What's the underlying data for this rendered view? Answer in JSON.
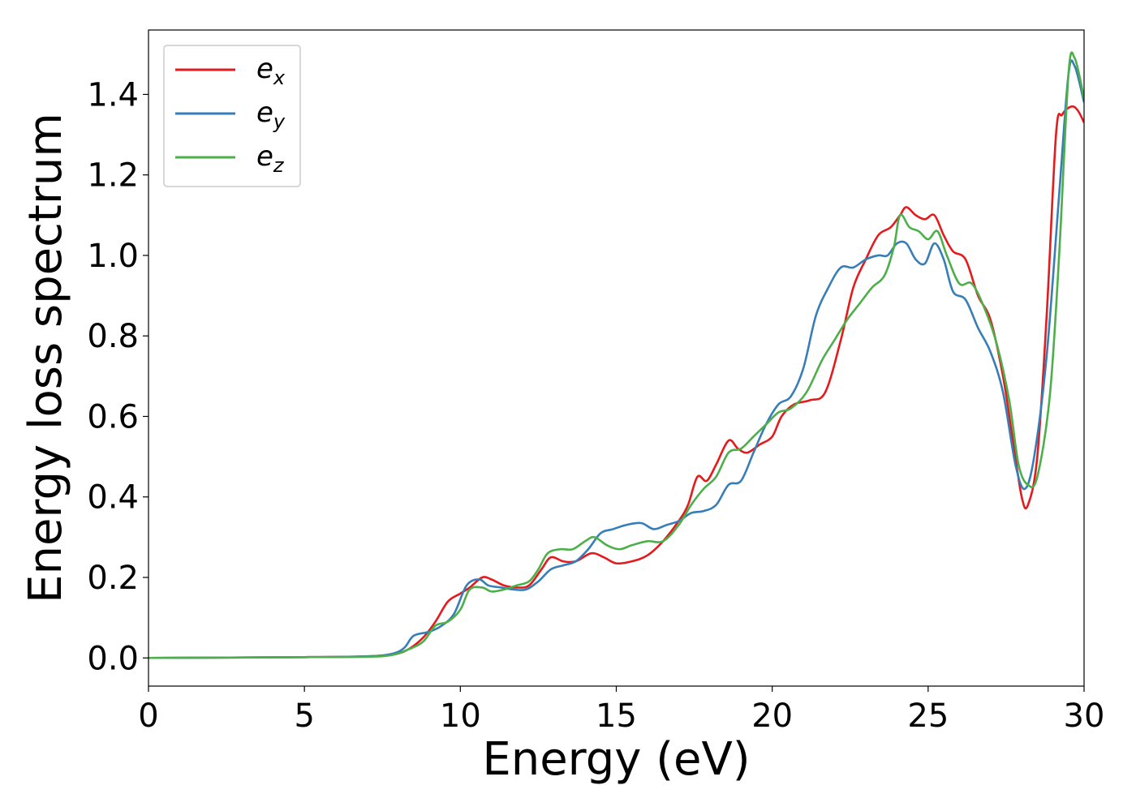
{
  "chart_data": {
    "type": "line",
    "xlabel": "Energy (eV)",
    "ylabel": "Energy loss spectrum",
    "xlim": [
      0,
      30
    ],
    "ylim": [
      -0.07,
      1.56
    ],
    "xticks": [
      0,
      5,
      10,
      15,
      20,
      25,
      30
    ],
    "yticks": [
      0.0,
      0.2,
      0.4,
      0.6,
      0.8,
      1.0,
      1.2,
      1.4
    ],
    "xtick_labels": [
      "0",
      "5",
      "10",
      "15",
      "20",
      "25",
      "30"
    ],
    "ytick_labels": [
      "0.0",
      "0.2",
      "0.4",
      "0.6",
      "0.8",
      "1.0",
      "1.2",
      "1.4"
    ],
    "grid": false,
    "legend_position": "top-left",
    "series": [
      {
        "name": "e",
        "subscript": "x",
        "color": "#e41a1c",
        "points": [
          [
            0,
            0
          ],
          [
            5,
            0.002
          ],
          [
            7,
            0.004
          ],
          [
            7.8,
            0.008
          ],
          [
            8.3,
            0.02
          ],
          [
            8.8,
            0.05
          ],
          [
            9.2,
            0.09
          ],
          [
            9.6,
            0.14
          ],
          [
            10,
            0.16
          ],
          [
            10.3,
            0.175
          ],
          [
            10.7,
            0.2
          ],
          [
            11,
            0.195
          ],
          [
            11.4,
            0.18
          ],
          [
            11.8,
            0.175
          ],
          [
            12.2,
            0.18
          ],
          [
            12.6,
            0.22
          ],
          [
            12.9,
            0.25
          ],
          [
            13.3,
            0.24
          ],
          [
            13.7,
            0.24
          ],
          [
            14.2,
            0.26
          ],
          [
            14.6,
            0.25
          ],
          [
            15,
            0.235
          ],
          [
            15.5,
            0.24
          ],
          [
            16,
            0.255
          ],
          [
            16.5,
            0.29
          ],
          [
            17,
            0.34
          ],
          [
            17.3,
            0.38
          ],
          [
            17.6,
            0.45
          ],
          [
            17.9,
            0.44
          ],
          [
            18.2,
            0.48
          ],
          [
            18.6,
            0.54
          ],
          [
            18.9,
            0.52
          ],
          [
            19.2,
            0.51
          ],
          [
            19.6,
            0.53
          ],
          [
            20,
            0.55
          ],
          [
            20.3,
            0.6
          ],
          [
            20.7,
            0.63
          ],
          [
            21.2,
            0.64
          ],
          [
            21.7,
            0.66
          ],
          [
            22.2,
            0.79
          ],
          [
            22.6,
            0.92
          ],
          [
            23,
            0.99
          ],
          [
            23.4,
            1.05
          ],
          [
            23.8,
            1.07
          ],
          [
            24.1,
            1.1
          ],
          [
            24.3,
            1.12
          ],
          [
            24.6,
            1.1
          ],
          [
            24.9,
            1.09
          ],
          [
            25.2,
            1.1
          ],
          [
            25.5,
            1.05
          ],
          [
            25.8,
            1.01
          ],
          [
            26.2,
            0.99
          ],
          [
            26.6,
            0.9
          ],
          [
            27,
            0.84
          ],
          [
            27.4,
            0.7
          ],
          [
            27.7,
            0.55
          ],
          [
            28,
            0.4
          ],
          [
            28.2,
            0.38
          ],
          [
            28.5,
            0.5
          ],
          [
            28.8,
            0.85
          ],
          [
            29.1,
            1.3
          ],
          [
            29.3,
            1.35
          ],
          [
            29.6,
            1.37
          ],
          [
            29.8,
            1.36
          ],
          [
            30,
            1.33
          ]
        ]
      },
      {
        "name": "e",
        "subscript": "y",
        "color": "#377eb8",
        "points": [
          [
            0,
            0
          ],
          [
            5,
            0.002
          ],
          [
            7,
            0.004
          ],
          [
            7.8,
            0.01
          ],
          [
            8.2,
            0.025
          ],
          [
            8.5,
            0.055
          ],
          [
            9,
            0.065
          ],
          [
            9.4,
            0.08
          ],
          [
            9.8,
            0.11
          ],
          [
            10.2,
            0.18
          ],
          [
            10.6,
            0.195
          ],
          [
            10.9,
            0.18
          ],
          [
            11.3,
            0.175
          ],
          [
            11.7,
            0.17
          ],
          [
            12.1,
            0.17
          ],
          [
            12.5,
            0.19
          ],
          [
            12.9,
            0.22
          ],
          [
            13.3,
            0.23
          ],
          [
            13.7,
            0.24
          ],
          [
            14.1,
            0.27
          ],
          [
            14.5,
            0.31
          ],
          [
            14.9,
            0.32
          ],
          [
            15.3,
            0.33
          ],
          [
            15.8,
            0.335
          ],
          [
            16.2,
            0.32
          ],
          [
            16.6,
            0.33
          ],
          [
            17,
            0.34
          ],
          [
            17.4,
            0.36
          ],
          [
            17.8,
            0.365
          ],
          [
            18.2,
            0.38
          ],
          [
            18.6,
            0.43
          ],
          [
            19,
            0.44
          ],
          [
            19.4,
            0.51
          ],
          [
            19.8,
            0.58
          ],
          [
            20.2,
            0.63
          ],
          [
            20.6,
            0.65
          ],
          [
            21,
            0.72
          ],
          [
            21.4,
            0.85
          ],
          [
            21.8,
            0.92
          ],
          [
            22.2,
            0.97
          ],
          [
            22.6,
            0.97
          ],
          [
            23,
            0.99
          ],
          [
            23.4,
            1.0
          ],
          [
            23.7,
            1.0
          ],
          [
            24,
            1.03
          ],
          [
            24.3,
            1.03
          ],
          [
            24.6,
            0.99
          ],
          [
            24.9,
            0.98
          ],
          [
            25.2,
            1.03
          ],
          [
            25.5,
            0.99
          ],
          [
            25.8,
            0.91
          ],
          [
            26.2,
            0.89
          ],
          [
            26.6,
            0.82
          ],
          [
            27,
            0.76
          ],
          [
            27.4,
            0.66
          ],
          [
            27.8,
            0.48
          ],
          [
            28.1,
            0.42
          ],
          [
            28.4,
            0.5
          ],
          [
            28.8,
            0.75
          ],
          [
            29.2,
            1.15
          ],
          [
            29.5,
            1.45
          ],
          [
            29.7,
            1.47
          ],
          [
            30,
            1.38
          ]
        ]
      },
      {
        "name": "e",
        "subscript": "z",
        "color": "#4daf4a",
        "points": [
          [
            0,
            0
          ],
          [
            5,
            0.002
          ],
          [
            7,
            0.003
          ],
          [
            7.8,
            0.007
          ],
          [
            8.3,
            0.02
          ],
          [
            8.8,
            0.04
          ],
          [
            9.2,
            0.08
          ],
          [
            9.6,
            0.09
          ],
          [
            10,
            0.12
          ],
          [
            10.3,
            0.17
          ],
          [
            10.7,
            0.175
          ],
          [
            11,
            0.165
          ],
          [
            11.4,
            0.17
          ],
          [
            11.8,
            0.18
          ],
          [
            12.2,
            0.19
          ],
          [
            12.5,
            0.22
          ],
          [
            12.8,
            0.26
          ],
          [
            13.2,
            0.27
          ],
          [
            13.6,
            0.27
          ],
          [
            14,
            0.29
          ],
          [
            14.3,
            0.3
          ],
          [
            14.7,
            0.28
          ],
          [
            15.1,
            0.27
          ],
          [
            15.5,
            0.28
          ],
          [
            16,
            0.29
          ],
          [
            16.5,
            0.29
          ],
          [
            17,
            0.33
          ],
          [
            17.4,
            0.38
          ],
          [
            17.8,
            0.42
          ],
          [
            18.2,
            0.45
          ],
          [
            18.6,
            0.51
          ],
          [
            19,
            0.52
          ],
          [
            19.4,
            0.55
          ],
          [
            19.8,
            0.58
          ],
          [
            20.2,
            0.61
          ],
          [
            20.6,
            0.62
          ],
          [
            21.1,
            0.66
          ],
          [
            21.6,
            0.74
          ],
          [
            22,
            0.79
          ],
          [
            22.4,
            0.84
          ],
          [
            22.8,
            0.88
          ],
          [
            23.2,
            0.92
          ],
          [
            23.6,
            0.95
          ],
          [
            23.9,
            1.02
          ],
          [
            24.1,
            1.1
          ],
          [
            24.4,
            1.07
          ],
          [
            24.7,
            1.06
          ],
          [
            25,
            1.04
          ],
          [
            25.3,
            1.06
          ],
          [
            25.6,
            1.0
          ],
          [
            26,
            0.93
          ],
          [
            26.4,
            0.93
          ],
          [
            26.8,
            0.87
          ],
          [
            27.2,
            0.78
          ],
          [
            27.6,
            0.64
          ],
          [
            27.9,
            0.48
          ],
          [
            28.2,
            0.43
          ],
          [
            28.5,
            0.45
          ],
          [
            28.9,
            0.65
          ],
          [
            29.2,
            1.0
          ],
          [
            29.5,
            1.45
          ],
          [
            29.7,
            1.49
          ],
          [
            30,
            1.39
          ]
        ]
      }
    ]
  }
}
